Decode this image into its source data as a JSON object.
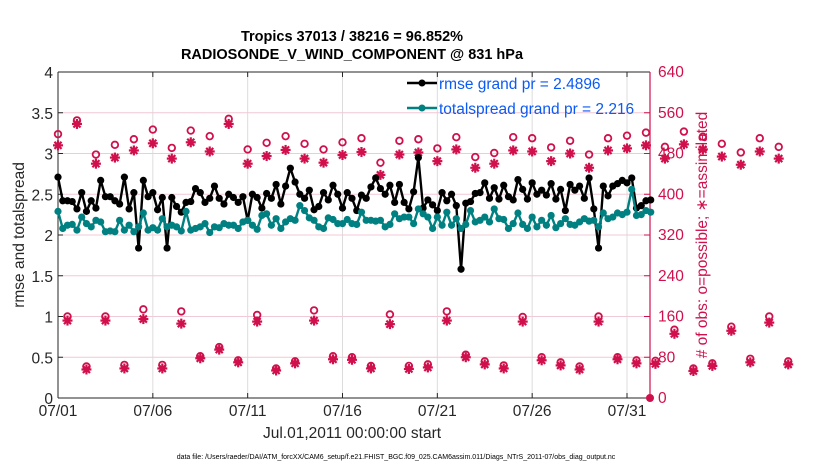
{
  "chart_data": {
    "type": "line",
    "title": "Tropics 37013 / 38216 = 96.852%",
    "subtitle": "RADIOSONDE_V_WIND_COMPONENT @ 831 hPa",
    "xlabel": "Jul.01,2011 00:00:00 start",
    "ylabel": "rmse and totalspread",
    "y2label": "# of obs: o=possible; ∗=assimilated",
    "ylim": [
      0,
      4
    ],
    "y2lim": [
      0,
      640
    ],
    "xlim_days": [
      0,
      31
    ],
    "x_tick_labels": [
      "07/01",
      "07/06",
      "07/11",
      "07/16",
      "07/21",
      "07/26",
      "07/31"
    ],
    "x_tick_days": [
      0,
      5,
      10,
      15,
      20,
      25,
      30
    ],
    "y_tick_labels": [
      "0",
      "0.5",
      "1",
      "1.5",
      "2",
      "2.5",
      "3",
      "3.5",
      "4"
    ],
    "y2_tick_labels": [
      "0",
      "80",
      "160",
      "240",
      "320",
      "400",
      "480",
      "560",
      "640"
    ],
    "grid": true,
    "legend_position": "top-right",
    "footnote": "data file: /Users/raeder/DAI/ATM_forcXX/CAM6_setup/f.e21.FHIST_BGC.f09_025.CAM6assim.011/Diags_NTrS_2011-07/obs_diag_output.nc",
    "colors": {
      "rmse": "#000000",
      "spread": "#008080",
      "obs": "#d0104c",
      "legend_text": "#0a5af5"
    },
    "series": [
      {
        "name": "rmse grand pr = 2.4896",
        "axis": "left",
        "marker": "filled-circle",
        "x_start_day": 0.0,
        "x_step_day": 0.25,
        "values": [
          2.71,
          2.42,
          2.42,
          2.41,
          2.32,
          2.52,
          2.29,
          2.42,
          2.33,
          2.67,
          2.47,
          2.47,
          2.42,
          2.38,
          2.71,
          2.32,
          2.52,
          1.84,
          2.67,
          2.47,
          2.52,
          2.31,
          2.46,
          1.84,
          2.46,
          2.35,
          2.28,
          2.4,
          2.41,
          2.57,
          2.52,
          2.4,
          2.45,
          2.6,
          2.45,
          2.38,
          2.5,
          2.46,
          2.4,
          2.47,
          2.18,
          2.5,
          2.46,
          2.33,
          2.51,
          2.45,
          2.62,
          2.38,
          2.6,
          2.82,
          2.65,
          2.5,
          2.45,
          2.55,
          2.31,
          2.35,
          2.52,
          2.43,
          2.61,
          2.5,
          2.33,
          2.52,
          2.45,
          2.3,
          2.49,
          2.45,
          2.59,
          2.7,
          2.57,
          2.5,
          2.61,
          2.4,
          2.62,
          2.4,
          2.32,
          2.53,
          2.95,
          2.33,
          2.43,
          2.37,
          2.3,
          2.52,
          2.42,
          2.5,
          2.36,
          1.58,
          2.39,
          2.41,
          2.51,
          2.52,
          2.64,
          2.45,
          2.58,
          2.44,
          2.61,
          2.47,
          2.43,
          2.68,
          2.56,
          2.44,
          2.64,
          2.5,
          2.55,
          2.49,
          2.63,
          2.44,
          2.56,
          2.3,
          2.62,
          2.55,
          2.6,
          2.45,
          2.7,
          2.32,
          1.84,
          2.6,
          2.48,
          2.6,
          2.63,
          2.67,
          2.64,
          2.7,
          2.33,
          2.36,
          2.42,
          2.43
        ]
      },
      {
        "name": "totalspread grand pr = 2.216",
        "axis": "left",
        "marker": "filled-circle",
        "x_start_day": 0.0,
        "x_step_day": 0.25,
        "values": [
          2.29,
          2.08,
          2.12,
          2.13,
          2.06,
          2.22,
          2.14,
          2.1,
          2.18,
          2.16,
          2.04,
          2.05,
          2.04,
          2.18,
          2.06,
          2.12,
          2.04,
          2.1,
          2.27,
          2.06,
          2.09,
          2.06,
          2.2,
          2.1,
          2.12,
          2.1,
          2.05,
          2.29,
          2.06,
          2.08,
          2.1,
          2.14,
          2.03,
          2.1,
          2.09,
          2.14,
          2.12,
          2.12,
          2.08,
          2.16,
          2.18,
          2.12,
          2.07,
          2.24,
          2.26,
          2.12,
          2.2,
          2.08,
          2.16,
          2.2,
          2.18,
          2.36,
          2.3,
          2.21,
          2.18,
          2.1,
          2.08,
          2.21,
          2.19,
          2.14,
          2.14,
          2.19,
          2.14,
          2.13,
          2.28,
          2.18,
          2.18,
          2.17,
          2.18,
          2.1,
          2.13,
          2.26,
          2.2,
          2.22,
          2.22,
          2.14,
          2.32,
          2.26,
          2.22,
          2.08,
          2.22,
          2.12,
          2.28,
          2.12,
          2.2,
          2.08,
          2.13,
          2.3,
          2.16,
          2.18,
          2.22,
          2.16,
          2.32,
          2.2,
          2.19,
          2.08,
          2.14,
          2.27,
          2.13,
          2.08,
          2.22,
          2.1,
          2.18,
          2.12,
          2.24,
          2.09,
          2.14,
          2.2,
          2.13,
          2.12,
          2.16,
          2.2,
          2.17,
          2.18,
          2.1,
          2.27,
          2.2,
          2.22,
          2.27,
          2.25,
          2.28,
          2.56,
          2.24,
          2.25,
          2.3,
          2.28
        ]
      },
      {
        "name": "obs possible",
        "axis": "right",
        "marker": "open-circle",
        "x_start_day": 0.0,
        "x_step_day": 0.5,
        "values": [
          518,
          160,
          545,
          62,
          478,
          160,
          497,
          65,
          508,
          174,
          527,
          65,
          491,
          170,
          525,
          82,
          514,
          100,
          548,
          74,
          488,
          163,
          501,
          58,
          514,
          72,
          499,
          172,
          488,
          82,
          502,
          80,
          510,
          63,
          462,
          164,
          505,
          63,
          508,
          66,
          490,
          170,
          512,
          85,
          473,
          72,
          481,
          64,
          512,
          159,
          510,
          80,
          492,
          70,
          505,
          62,
          478,
          160,
          510,
          80,
          515,
          74,
          521,
          73,
          493,
          134,
          523,
          58,
          513,
          68,
          499,
          140,
          482,
          77,
          510,
          160,
          493,
          72
        ]
      },
      {
        "name": "obs assimilated",
        "axis": "right",
        "marker": "asterisk",
        "x_start_day": 0.0,
        "x_step_day": 0.5,
        "values": [
          496,
          152,
          538,
          56,
          460,
          152,
          472,
          58,
          486,
          155,
          500,
          58,
          470,
          146,
          502,
          78,
          484,
          95,
          538,
          70,
          460,
          150,
          475,
          54,
          487,
          68,
          470,
          152,
          462,
          76,
          477,
          75,
          483,
          58,
          438,
          145,
          478,
          57,
          482,
          60,
          465,
          152,
          488,
          80,
          452,
          66,
          460,
          58,
          486,
          150,
          484,
          74,
          465,
          64,
          480,
          56,
          452,
          150,
          486,
          76,
          490,
          68,
          496,
          67,
          470,
          126,
          498,
          53,
          488,
          63,
          474,
          132,
          458,
          70,
          484,
          148,
          470,
          66
        ]
      }
    ],
    "annotations": []
  }
}
